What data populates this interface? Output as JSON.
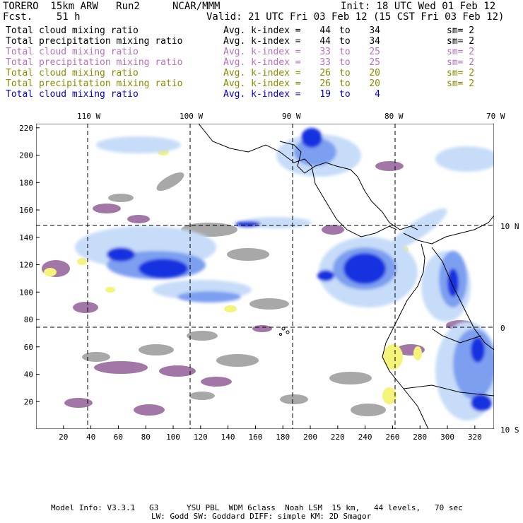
{
  "header": {
    "model_name": "TORERO  15km ARW   Run2",
    "institution": "NCAR/MMM",
    "init": "Init: 18 UTC Wed 01 Feb 12",
    "forecast": "Fcst.    51 h",
    "valid": "Valid: 21 UTC Fri 03 Feb 12 (15 CST Fri 03 Feb 12)"
  },
  "legend": [
    {
      "label": "Total cloud mixing ratio",
      "kword": "Avg. k-index =",
      "from": "44",
      "to_word": "to",
      "to": "34",
      "sm": "sm= 2",
      "color": "#000000"
    },
    {
      "label": "Total precipitation mixing ratio",
      "kword": "Avg. k-index =",
      "from": "44",
      "to_word": "to",
      "to": "34",
      "sm": "sm= 2",
      "color": "#000000"
    },
    {
      "label": "Total cloud mixing ratio",
      "kword": "Avg. k-index =",
      "from": "33",
      "to_word": "to",
      "to": "25",
      "sm": "sm= 2",
      "color": "#b86fc0"
    },
    {
      "label": "Total precipitation mixing ratio",
      "kword": "Avg. k-index =",
      "from": "33",
      "to_word": "to",
      "to": "25",
      "sm": "sm= 2",
      "color": "#b86fc0"
    },
    {
      "label": "Total cloud mixing ratio",
      "kword": "Avg. k-index =",
      "from": "26",
      "to_word": "to",
      "to": "20",
      "sm": "sm= 2",
      "color": "#8a8a00"
    },
    {
      "label": "Total precipitation mixing ratio",
      "kword": "Avg. k-index =",
      "from": "26",
      "to_word": "to",
      "to": "20",
      "sm": "sm= 2",
      "color": "#8a8a00"
    },
    {
      "label": "Total cloud mixing ratio",
      "kword": "Avg. k-index =",
      "from": "19",
      "to_word": "to",
      "to": "4",
      "sm": "",
      "color": "#0000dd"
    }
  ],
  "axes": {
    "lon_labels": [
      "110 W",
      "100 W",
      "90 W",
      "80 W",
      "70 W"
    ],
    "lat_labels": [
      "10 N",
      "0",
      "10 S"
    ],
    "x_ticks": [
      "20",
      "40",
      "60",
      "80",
      "100",
      "120",
      "140",
      "160",
      "180",
      "200",
      "220",
      "240",
      "260",
      "280",
      "300",
      "320"
    ],
    "y_ticks": [
      "20",
      "40",
      "60",
      "80",
      "100",
      "120",
      "140",
      "160",
      "180",
      "200",
      "220"
    ]
  },
  "colors": {
    "gray_field": "#a8a8a8",
    "purple_field": "#a277a8",
    "yellow_field": "#f4f47a",
    "light_blue_field": "#c6dcf8",
    "mid_blue_field": "#7d9ff0",
    "deep_blue_field": "#1530e0",
    "coastline": "#000000",
    "grid": "#000000"
  },
  "footer": {
    "line1": "Model Info: V3.3.1   G3      YSU PBL  WDM 6class  Noah LSM  15 km,   44 levels,   70 sec",
    "line2": "LW: Godd SW: Goddard DIFF: simple KM: 2D Smagor"
  }
}
